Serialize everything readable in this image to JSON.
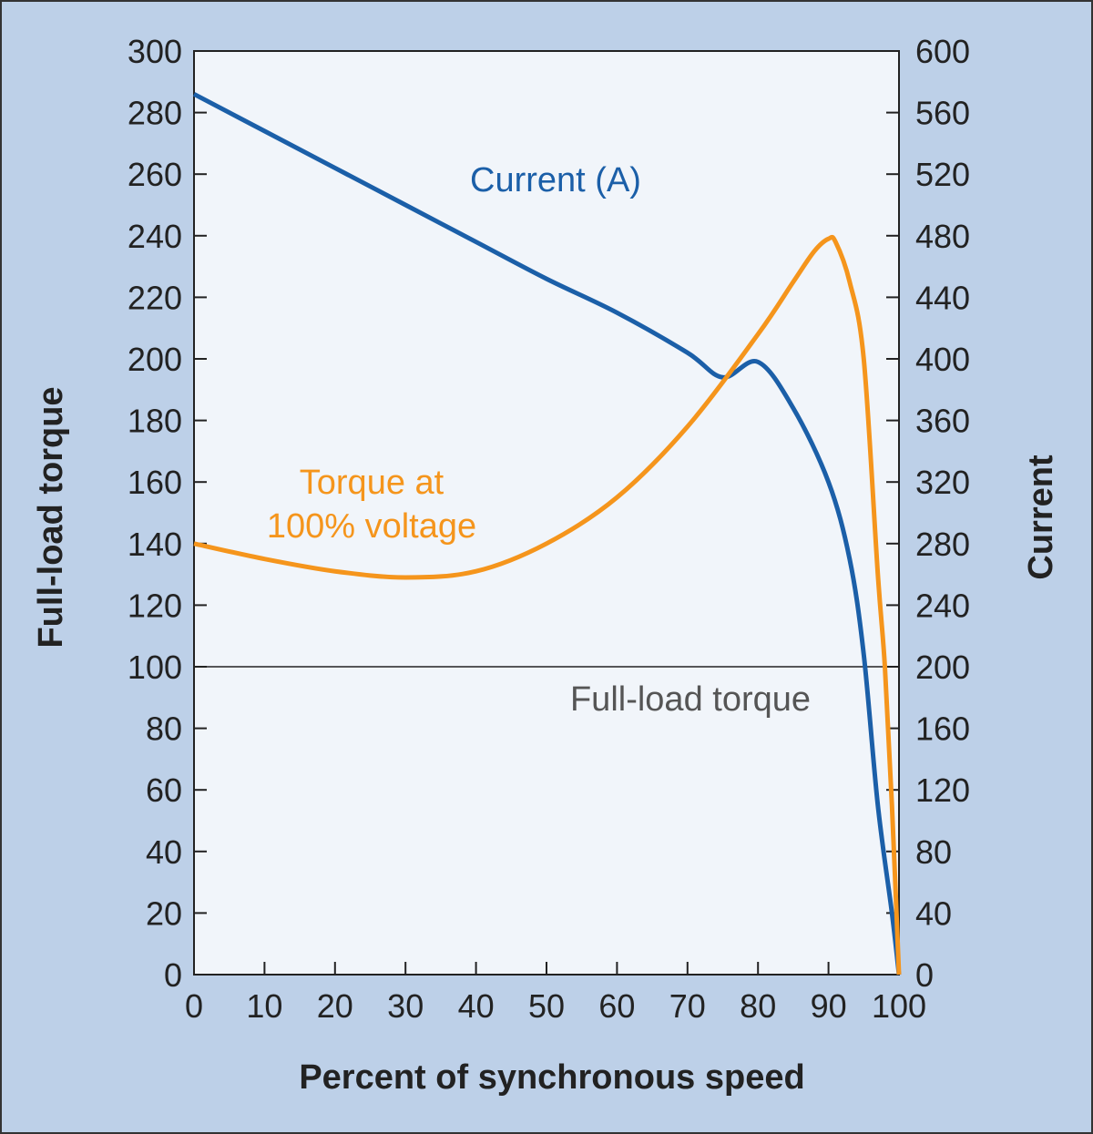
{
  "chart_data": {
    "type": "line",
    "xlabel": "Percent of synchronous speed",
    "ylabel": "Full-load torque",
    "y2label": "Current",
    "xlim": [
      0,
      100
    ],
    "ylim": [
      0,
      300
    ],
    "y2lim": [
      0,
      600
    ],
    "x_ticks": [
      0,
      10,
      20,
      30,
      40,
      50,
      60,
      70,
      80,
      90,
      100
    ],
    "y_ticks": [
      0,
      20,
      40,
      60,
      80,
      100,
      120,
      140,
      160,
      180,
      200,
      220,
      240,
      260,
      280,
      300
    ],
    "y2_ticks": [
      0,
      40,
      80,
      120,
      160,
      200,
      240,
      280,
      320,
      360,
      400,
      440,
      480,
      520,
      560,
      600
    ],
    "grid": false,
    "series": [
      {
        "name": "Current (A)",
        "axis": "right",
        "color": "#1b5fa8",
        "x": [
          0,
          10,
          20,
          30,
          40,
          50,
          60,
          70,
          75,
          80,
          85,
          90,
          93,
          95,
          97,
          99,
          100
        ],
        "y": [
          572,
          548,
          524,
          500,
          476,
          452,
          430,
          404,
          388,
          398,
          368,
          320,
          270,
          208,
          110,
          40,
          0
        ]
      },
      {
        "name": "Torque at 100% voltage",
        "axis": "left",
        "color": "#f5951c",
        "x": [
          0,
          10,
          20,
          30,
          40,
          50,
          60,
          70,
          80,
          85,
          88,
          90,
          91,
          93,
          95,
          97,
          98,
          99,
          100
        ],
        "y": [
          140,
          135,
          131,
          129,
          131,
          140,
          155,
          178,
          208,
          225,
          235,
          239,
          238,
          225,
          200,
          130,
          100,
          55,
          0
        ]
      }
    ],
    "reference_line": {
      "label": "Full-load torque",
      "y": 100
    },
    "annotations": {
      "current": "Current (A)",
      "torque_line1": "Torque at",
      "torque_line2": "100% voltage"
    }
  }
}
